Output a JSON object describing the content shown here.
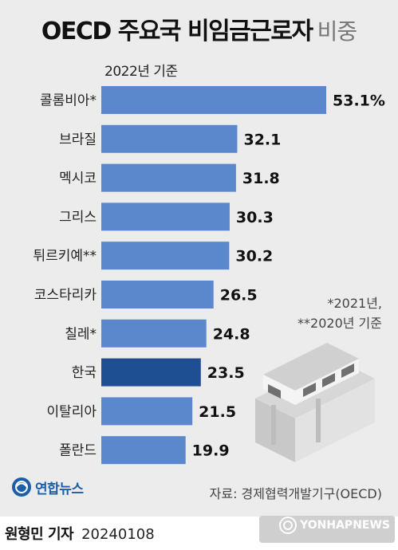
{
  "title": {
    "main": "OECD 주요국 비임금근로자",
    "sub": "비중"
  },
  "subtitle": "2022년 기준",
  "footnote": {
    "line1": "*2021년,",
    "line2": "**2020년 기준"
  },
  "source": "자료: 경제협력개발기구(OECD)",
  "agency": {
    "name": "연합뉴스",
    "logo_icon": "yonhap-globe-logo"
  },
  "byline": {
    "author": "원형민 기자",
    "date": "20240108"
  },
  "watermark": {
    "text": "YONHAPNEWS",
    "icon": "yonhap-globe-logo"
  },
  "colors": {
    "panel_bg": "#ececec",
    "bar_default": "#5b87cd",
    "bar_highlight": "#1f4f93",
    "text": "#111111",
    "brand": "#1d5ea8"
  },
  "chart_data": {
    "type": "bar",
    "orientation": "horizontal",
    "categories": [
      "콜롬비아*",
      "브라질",
      "멕시코",
      "그리스",
      "튀르키예**",
      "코스타리카",
      "칠레*",
      "한국",
      "이탈리아",
      "폴란드"
    ],
    "values": [
      53.1,
      32.1,
      31.8,
      30.3,
      30.2,
      26.5,
      24.8,
      23.5,
      21.5,
      19.9
    ],
    "value_labels": [
      "53.1%",
      "32.1",
      "31.8",
      "30.3",
      "30.2",
      "26.5",
      "24.8",
      "23.5",
      "21.5",
      "19.9"
    ],
    "highlight_category": "한국",
    "unit": "%",
    "xlim": [
      0,
      53.1
    ],
    "grid": false,
    "legend": "none"
  }
}
